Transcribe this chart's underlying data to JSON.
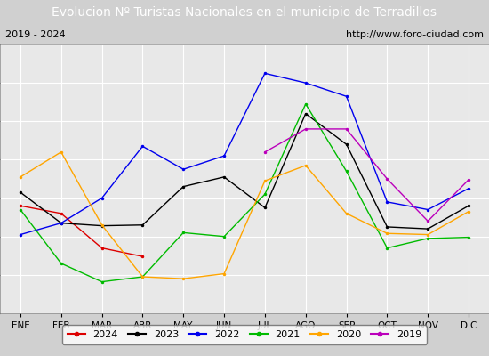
{
  "title": "Evolucion Nº Turistas Nacionales en el municipio de Terradillos",
  "subtitle_left": "2019 - 2024",
  "subtitle_right": "http://www.foro-ciudad.com",
  "months": [
    "ENE",
    "FEB",
    "MAR",
    "ABR",
    "MAY",
    "JUN",
    "JUL",
    "AGO",
    "SEP",
    "OCT",
    "NOV",
    "DIC"
  ],
  "ylim": [
    0,
    700
  ],
  "yticks": [
    0,
    100,
    200,
    300,
    400,
    500,
    600,
    700
  ],
  "series": {
    "2024": {
      "color": "#dd0000",
      "values": [
        280,
        260,
        170,
        148,
        null,
        null,
        null,
        null,
        null,
        null,
        null,
        null
      ]
    },
    "2023": {
      "color": "#000000",
      "values": [
        315,
        235,
        228,
        230,
        330,
        355,
        275,
        520,
        440,
        225,
        220,
        280
      ]
    },
    "2022": {
      "color": "#0000ee",
      "values": [
        205,
        235,
        300,
        435,
        375,
        410,
        625,
        600,
        565,
        290,
        270,
        325
      ]
    },
    "2021": {
      "color": "#00bb00",
      "values": [
        270,
        130,
        82,
        95,
        210,
        200,
        310,
        545,
        370,
        170,
        195,
        198
      ]
    },
    "2020": {
      "color": "#ffa500",
      "values": [
        355,
        420,
        230,
        95,
        90,
        103,
        345,
        385,
        260,
        208,
        205,
        265
      ]
    },
    "2019": {
      "color": "#bb00bb",
      "values": [
        null,
        null,
        null,
        null,
        null,
        null,
        420,
        480,
        480,
        350,
        240,
        348
      ]
    }
  },
  "title_bg_color": "#4f81bd",
  "title_fg_color": "#ffffff",
  "subtitle_bg_color": "#ffffff",
  "plot_bg_color": "#e8e8e8",
  "grid_color": "#ffffff",
  "fig_bg_color": "#d0d0d0",
  "legend_order": [
    "2024",
    "2023",
    "2022",
    "2021",
    "2020",
    "2019"
  ]
}
